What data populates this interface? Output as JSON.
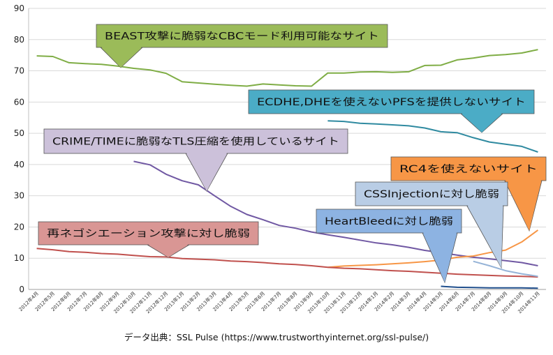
{
  "chart_data": {
    "type": "line",
    "title": "",
    "xlabel": "",
    "ylabel": "",
    "ylim": [
      0,
      90
    ],
    "yticks": [
      0,
      10,
      20,
      30,
      40,
      50,
      60,
      70,
      80,
      90
    ],
    "grid": "horizontal",
    "categories": [
      "2012年4月",
      "2012年5月",
      "2012年6月",
      "2012年7月",
      "2012年8月",
      "2012年9月",
      "2012年10月",
      "2012年11月",
      "2012年12月",
      "2013年1月",
      "2013年2月",
      "2013年3月",
      "2013年4月",
      "2013年5月",
      "2013年6月",
      "2013年7月",
      "2013年8月",
      "2013年9月",
      "2013年10月",
      "2013年11月",
      "2013年12月",
      "2014年1月",
      "2014年2月",
      "2014年3月",
      "2014年4月",
      "2014年5月",
      "2014年6月",
      "2014年7月",
      "2014年8月",
      "2014年9月",
      "2014年10月",
      "2014年11月"
    ],
    "series": [
      {
        "name": "BEAST攻撃に脆弱なCBCモード利用可能なサイト",
        "color": "#7fad45",
        "values": [
          74.8,
          74.6,
          72.6,
          72.3,
          72.1,
          71.5,
          70.8,
          70.3,
          69.2,
          66.5,
          66.1,
          65.7,
          65.4,
          65.1,
          65.8,
          65.5,
          65.2,
          65.1,
          69.3,
          69.3,
          69.6,
          69.7,
          69.5,
          69.7,
          71.7,
          71.8,
          73.5,
          74.1,
          74.9,
          75.2,
          75.7,
          76.8
        ]
      },
      {
        "name": "ECDHE,DHEを使えないPFSを提供しないサイト",
        "color": "#2f8aa0",
        "values": [
          null,
          null,
          null,
          null,
          null,
          null,
          null,
          null,
          null,
          null,
          null,
          null,
          null,
          null,
          null,
          null,
          null,
          null,
          54.0,
          53.8,
          53.2,
          53.0,
          52.7,
          52.4,
          51.7,
          50.5,
          50.2,
          48.6,
          47.2,
          46.5,
          45.8,
          44.0
        ]
      },
      {
        "name": "CRIME/TIMEに脆弱なTLS圧縮を使用しているサイト",
        "color": "#7058a3",
        "values": [
          null,
          null,
          null,
          null,
          null,
          null,
          41.0,
          39.9,
          36.9,
          34.8,
          33.5,
          30.0,
          26.6,
          24.0,
          22.3,
          20.5,
          19.6,
          18.4,
          17.5,
          16.7,
          15.8,
          14.9,
          14.3,
          13.5,
          12.5,
          11.8,
          11.0,
          10.3,
          9.8,
          9.2,
          8.6,
          7.6
        ]
      },
      {
        "name": "RC4を使えないサイト",
        "color": "#f79646",
        "values": [
          null,
          null,
          null,
          null,
          null,
          null,
          null,
          null,
          null,
          null,
          null,
          null,
          null,
          null,
          null,
          null,
          null,
          null,
          7.1,
          7.5,
          7.7,
          7.9,
          8.2,
          8.5,
          8.9,
          9.4,
          10.3,
          10.7,
          11.8,
          12.6,
          15.2,
          19.0
        ]
      },
      {
        "name": "再ネゴシエーション攻撃に対し脆弱",
        "color": "#c0504d",
        "values": [
          13.1,
          12.7,
          12.1,
          11.9,
          11.5,
          11.3,
          10.9,
          10.5,
          10.4,
          9.9,
          9.7,
          9.5,
          9.1,
          8.9,
          8.6,
          8.2,
          8.0,
          7.6,
          7.1,
          6.8,
          6.6,
          6.3,
          6.0,
          5.8,
          5.5,
          5.2,
          4.9,
          4.7,
          4.5,
          4.3,
          4.2,
          4.0
        ]
      },
      {
        "name": "CSSInjectionに対し脆弱",
        "color": "#95b3d7",
        "values": [
          null,
          null,
          null,
          null,
          null,
          null,
          null,
          null,
          null,
          null,
          null,
          null,
          null,
          null,
          null,
          null,
          null,
          null,
          null,
          null,
          null,
          null,
          null,
          null,
          null,
          null,
          null,
          9.0,
          7.6,
          6.0,
          5.0,
          4.2
        ]
      },
      {
        "name": "HeartBleedに対し脆弱",
        "color": "#1f4e8c",
        "values": [
          null,
          null,
          null,
          null,
          null,
          null,
          null,
          null,
          null,
          null,
          null,
          null,
          null,
          null,
          null,
          null,
          null,
          null,
          null,
          null,
          null,
          null,
          null,
          null,
          null,
          1.0,
          0.7,
          0.6,
          0.5,
          0.5,
          0.5,
          0.4
        ]
      }
    ],
    "annotations": [
      {
        "text": "BEAST攻撃に脆弱なCBCモード利用可能なサイト",
        "fill": "#9bbb59",
        "series_index": 0
      },
      {
        "text": "ECDHE,DHEを使えないPFSを提供しないサイト",
        "fill": "#4bacc6",
        "series_index": 1
      },
      {
        "text": "CRIME/TIMEに脆弱なTLS圧縮を使用しているサイト",
        "fill": "#ccc1da",
        "series_index": 2
      },
      {
        "text": "RC4を使えないサイト",
        "fill": "#f79646",
        "series_index": 3
      },
      {
        "text": "再ネゴシエーション攻撃に対し脆弱",
        "fill": "#d99694",
        "series_index": 4
      },
      {
        "text": "CSSInjectionに対し脆弱",
        "fill": "#b9cde5",
        "series_index": 5
      },
      {
        "text": "HeartBleedに対し脆弱",
        "fill": "#8db3e2",
        "series_index": 6
      }
    ],
    "source": "データ出典：SSL Pulse (https://www.trustworthyinternet.org/ssl-pulse/)"
  }
}
